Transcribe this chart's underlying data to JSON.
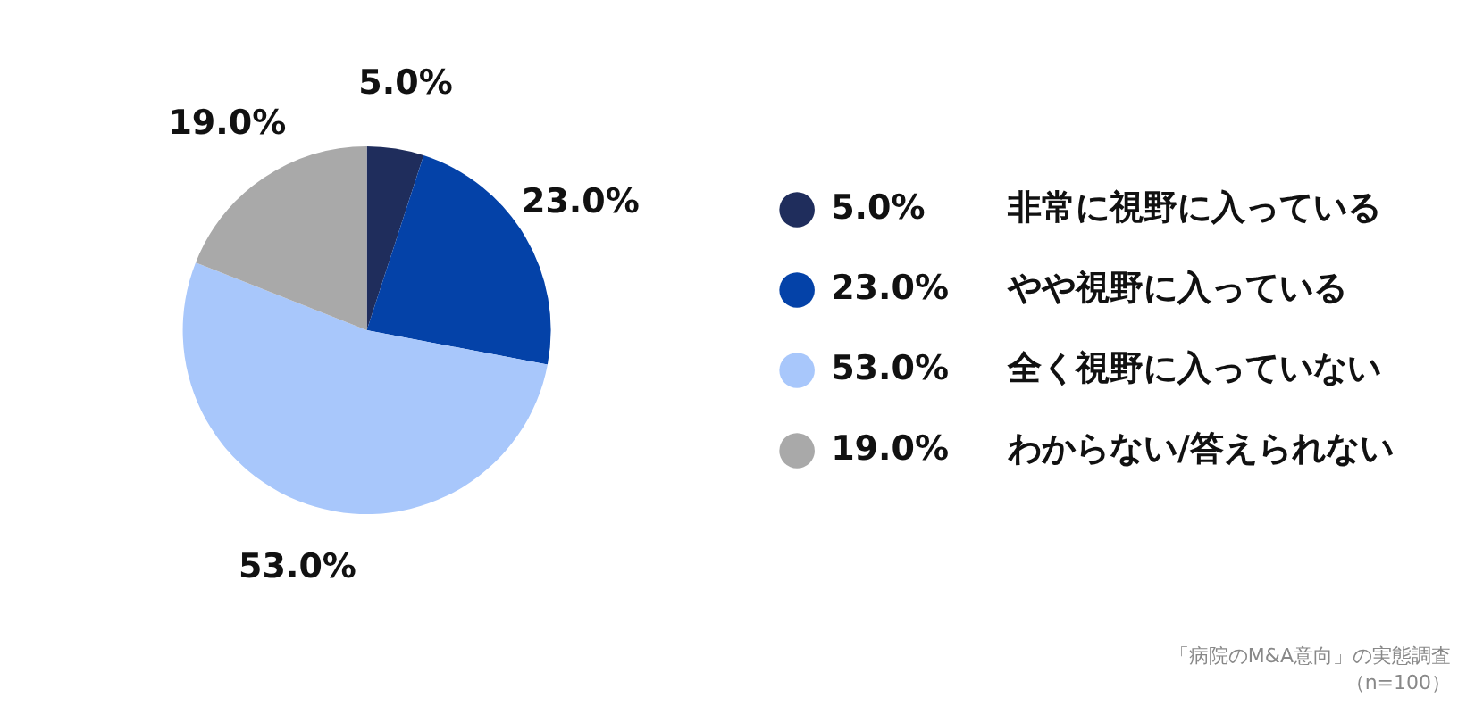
{
  "chart_data": {
    "type": "pie",
    "categories": [
      "非常に視野に入っている",
      "やや視野に入っている",
      "全く視野に入っていない",
      "わからない/答えられない"
    ],
    "values": [
      5,
      23,
      53,
      19
    ],
    "value_labels": [
      "5.0%",
      "23.0%",
      "53.0%",
      "19.0%"
    ],
    "colors": [
      "#1f2d5c",
      "#0442a8",
      "#a8c7fb",
      "#a9a9a9"
    ],
    "legend": "right",
    "annotations": [
      "「病院のM&A意向」の実態調査",
      "（n=100）"
    ]
  }
}
